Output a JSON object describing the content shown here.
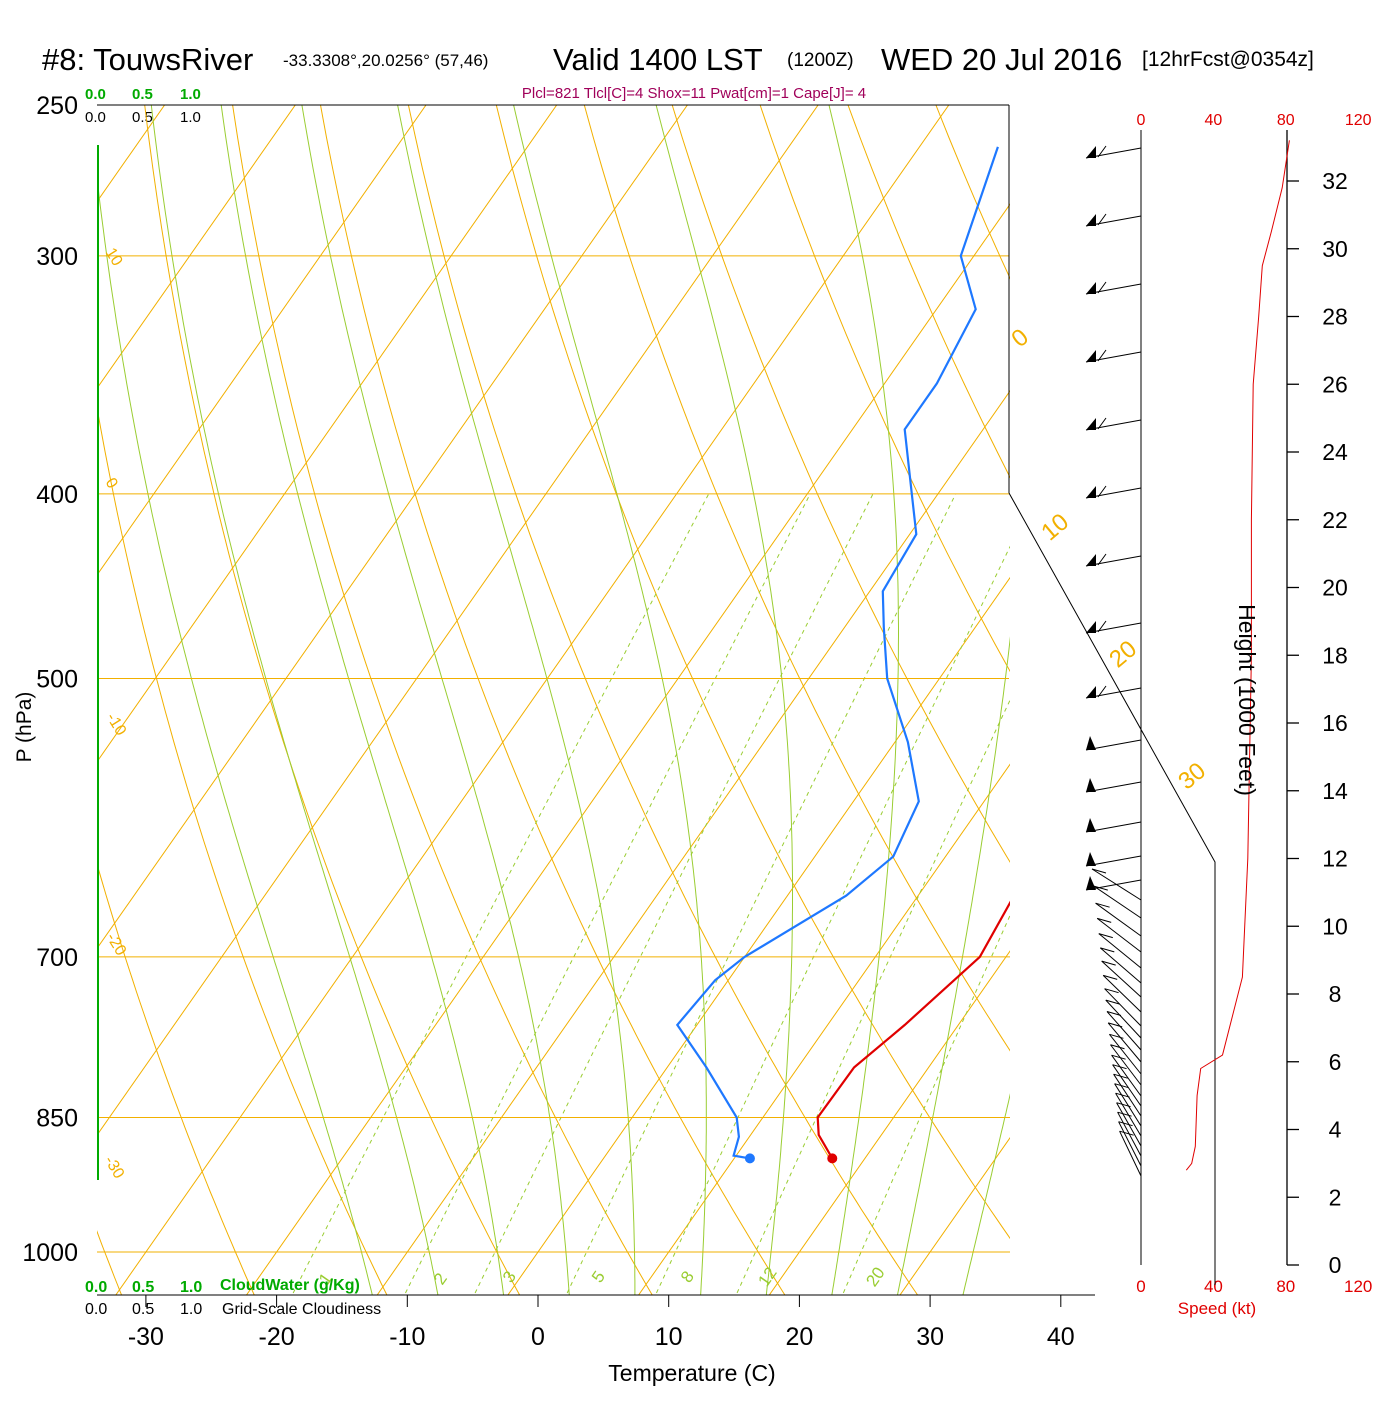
{
  "header": {
    "station": "#8: TouwsRiver",
    "coords": "-33.3308°,20.0256° (57,46)",
    "valid": "Valid 1400 LST",
    "valid_z": "(1200Z)",
    "date": "WED 20 Jul 2016",
    "fcst": "[12hrFcst@0354z]",
    "indices": "Plcl=821 Tlcl[C]=4 Shox=11 Pwat[cm]=1 Cape[J]= 4"
  },
  "scales": {
    "cloudwater_ticks": [
      "0.0",
      "0.5",
      "1.0"
    ],
    "cloudiness_ticks": [
      "0.0",
      "0.5",
      "1.0"
    ],
    "cloudwater_label": "CloudWater (g/Kg)",
    "cloudiness_label": "Grid-Scale Cloudiness"
  },
  "chart_data": {
    "type": "line",
    "xlabel": "Temperature (C)",
    "ylabel": "P (hPa)",
    "y2label": "Height (1000 Feet)",
    "speed_label": "Speed (kt)",
    "xlim": [
      -30,
      40
    ],
    "x_ticks": [
      "-30",
      "-20",
      "-10",
      "0",
      "10",
      "20",
      "30",
      "40"
    ],
    "ylim": [
      1000,
      250
    ],
    "y_log": true,
    "p_ticks": [
      "250",
      "300",
      "400",
      "500",
      "700",
      "850",
      "1000"
    ],
    "height_ticks": [
      "0",
      "2",
      "4",
      "6",
      "8",
      "10",
      "12",
      "14",
      "16",
      "18",
      "20",
      "22",
      "24",
      "26",
      "28",
      "30",
      "32"
    ],
    "speed_ticks": [
      "0",
      "40",
      "80",
      "120"
    ],
    "colors": {
      "temperature": "#e00000",
      "dewpoint": "#1e78ff",
      "isotherm": "#f2b000",
      "dry_adiabat": "#f2b000",
      "moist_adiabat": "#9acd32",
      "mixing_ratio": "#9acd32",
      "cloudwater": "#00aa00",
      "indices": "#a0005a",
      "speed": "#e00000"
    },
    "isotherm_labels": [
      "10",
      "0",
      "-10",
      "-20",
      "-30"
    ],
    "dry_adiabat_labels": [
      "0",
      "10",
      "20",
      "30"
    ],
    "mixing_ratio_labels": [
      "1",
      "2",
      "3",
      "5",
      "8",
      "12",
      "20"
    ],
    "series": [
      {
        "name": "Temperature",
        "points": [
          [
            17.5,
            893
          ],
          [
            15.2,
            868
          ],
          [
            14.2,
            850
          ],
          [
            14.3,
            800
          ],
          [
            15.9,
            760
          ],
          [
            18,
            700
          ],
          [
            17.2,
            640
          ],
          [
            16,
            600
          ],
          [
            14,
            550
          ],
          [
            10,
            500
          ],
          [
            5,
            450
          ],
          [
            -1,
            400
          ],
          [
            -6.5,
            350
          ],
          [
            -11.5,
            300
          ],
          [
            -19,
            263
          ]
        ]
      },
      {
        "name": "Dewpoint",
        "points": [
          [
            11.2,
            893
          ],
          [
            9.8,
            890
          ],
          [
            9.2,
            870
          ],
          [
            8,
            850
          ],
          [
            3,
            800
          ],
          [
            -1.5,
            760
          ],
          [
            -1,
            720
          ],
          [
            0,
            700
          ],
          [
            4.5,
            650
          ],
          [
            6,
            620
          ],
          [
            5,
            580
          ],
          [
            1,
            540
          ],
          [
            -4,
            500
          ],
          [
            -7,
            470
          ],
          [
            -9,
            450
          ],
          [
            -9.5,
            420
          ],
          [
            -12,
            400
          ],
          [
            -16,
            370
          ],
          [
            -16,
            350
          ],
          [
            -17,
            320
          ],
          [
            -21,
            300
          ],
          [
            -24,
            263
          ]
        ]
      },
      {
        "name": "Wind Speed",
        "points": [
          [
            25,
            2.8
          ],
          [
            28,
            3.0
          ],
          [
            30,
            3.5
          ],
          [
            31,
            5.0
          ],
          [
            33,
            5.8
          ],
          [
            45,
            6.2
          ],
          [
            56,
            8.5
          ],
          [
            59,
            12
          ],
          [
            61,
            18
          ],
          [
            61,
            22
          ],
          [
            62,
            26
          ],
          [
            65,
            28
          ],
          [
            67,
            29.5
          ],
          [
            72,
            30.5
          ],
          [
            78,
            31.8
          ],
          [
            82,
            33.2
          ]
        ]
      }
    ]
  }
}
